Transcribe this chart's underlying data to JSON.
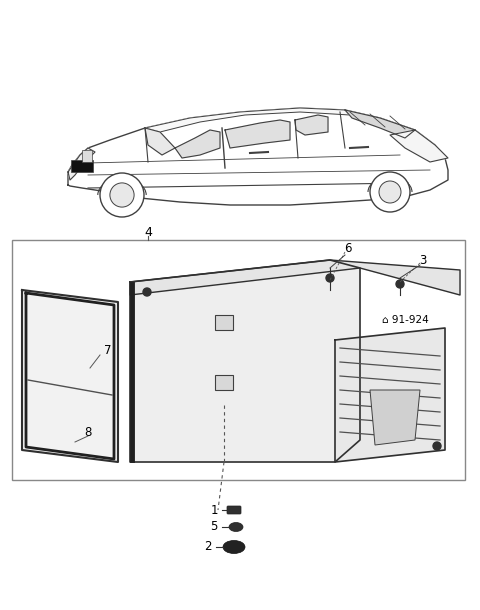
{
  "bg_color": "#ffffff",
  "fig_width": 4.8,
  "fig_height": 6.1,
  "dpi": 100,
  "car_color": "#ffffff",
  "line_color": "#404040",
  "box_line_color": "#888888",
  "part_fill": "#f0f0f0",
  "part_dark": "#202020"
}
